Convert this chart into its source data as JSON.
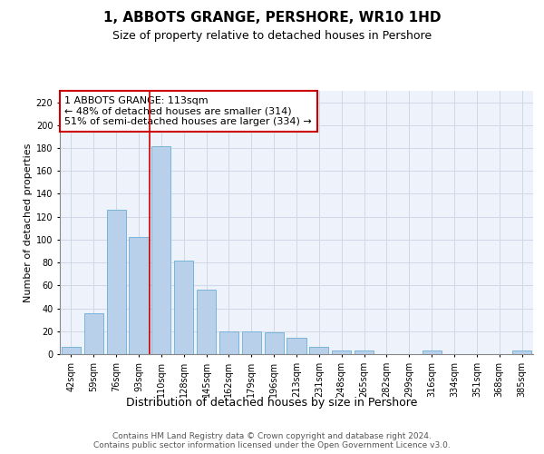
{
  "title": "1, ABBOTS GRANGE, PERSHORE, WR10 1HD",
  "subtitle": "Size of property relative to detached houses in Pershore",
  "xlabel": "Distribution of detached houses by size in Pershore",
  "ylabel": "Number of detached properties",
  "bar_labels": [
    "42sqm",
    "59sqm",
    "76sqm",
    "93sqm",
    "110sqm",
    "128sqm",
    "145sqm",
    "162sqm",
    "179sqm",
    "196sqm",
    "213sqm",
    "231sqm",
    "248sqm",
    "265sqm",
    "282sqm",
    "299sqm",
    "316sqm",
    "334sqm",
    "351sqm",
    "368sqm",
    "385sqm"
  ],
  "bar_values": [
    6,
    36,
    126,
    102,
    182,
    82,
    56,
    20,
    20,
    19,
    14,
    6,
    3,
    3,
    0,
    0,
    3,
    0,
    0,
    0,
    3
  ],
  "bar_color": "#b8d0ea",
  "bar_edge_color": "#6baed6",
  "vline_color": "#cc0000",
  "vline_x_index": 3.5,
  "annotation_text": "1 ABBOTS GRANGE: 113sqm\n← 48% of detached houses are smaller (314)\n51% of semi-detached houses are larger (334) →",
  "annotation_box_color": "#ffffff",
  "annotation_box_edge_color": "#cc0000",
  "ylim": [
    0,
    230
  ],
  "yticks": [
    0,
    20,
    40,
    60,
    80,
    100,
    120,
    140,
    160,
    180,
    200,
    220
  ],
  "grid_color": "#d0d8e8",
  "background_color": "#eef2fb",
  "footer_text": "Contains HM Land Registry data © Crown copyright and database right 2024.\nContains public sector information licensed under the Open Government Licence v3.0.",
  "title_fontsize": 11,
  "subtitle_fontsize": 9,
  "xlabel_fontsize": 9,
  "ylabel_fontsize": 8,
  "tick_fontsize": 7,
  "annotation_fontsize": 8,
  "footer_fontsize": 6.5
}
